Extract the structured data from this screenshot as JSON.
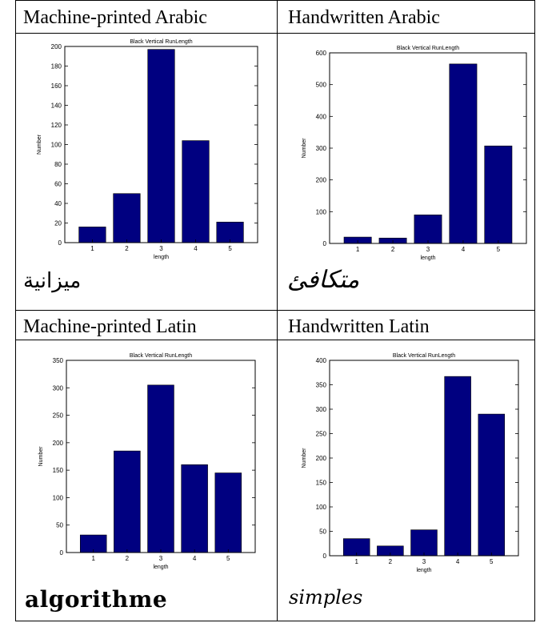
{
  "headers": {
    "top_left": "Machine-printed Arabic",
    "top_right": "Handwritten Arabic",
    "bottom_left": "Machine-printed Latin",
    "bottom_right": "Handwritten Latin"
  },
  "samples": {
    "top_left": "ميزانية",
    "top_right": "متكافئ",
    "bottom_left": "algorithme",
    "bottom_right": "simples"
  },
  "colors": {
    "bar": "#000080",
    "axis": "#000000",
    "background": "#ffffff"
  },
  "chart_data": [
    {
      "type": "bar",
      "title": "Black Vertical RunLength",
      "xlabel": "length",
      "ylabel": "Number",
      "categories": [
        "1",
        "2",
        "3",
        "4",
        "5"
      ],
      "values": [
        16,
        50,
        197,
        104,
        21
      ],
      "ylim": [
        0,
        200
      ],
      "yticks": [
        "0",
        "20",
        "40",
        "60",
        "80",
        "100",
        "120",
        "140",
        "160",
        "180",
        "200"
      ]
    },
    {
      "type": "bar",
      "title": "Black Vertical RunLength",
      "xlabel": "length",
      "ylabel": "Number",
      "categories": [
        "1",
        "2",
        "3",
        "4",
        "5"
      ],
      "values": [
        20,
        17,
        90,
        565,
        307
      ],
      "ylim": [
        0,
        600
      ],
      "yticks": [
        "0",
        "100",
        "200",
        "300",
        "400",
        "500",
        "600"
      ]
    },
    {
      "type": "bar",
      "title": "Black Vertical RunLength",
      "xlabel": "length",
      "ylabel": "Number",
      "categories": [
        "1",
        "2",
        "3",
        "4",
        "5"
      ],
      "values": [
        32,
        185,
        305,
        160,
        145
      ],
      "ylim": [
        0,
        350
      ],
      "yticks": [
        "0",
        "50",
        "100",
        "150",
        "200",
        "250",
        "300",
        "350"
      ]
    },
    {
      "type": "bar",
      "title": "Black Vertical RunLength",
      "xlabel": "length",
      "ylabel": "Number",
      "categories": [
        "1",
        "2",
        "3",
        "4",
        "5"
      ],
      "values": [
        35,
        20,
        53,
        367,
        290
      ],
      "ylim": [
        0,
        400
      ],
      "yticks": [
        "0",
        "50",
        "100",
        "150",
        "200",
        "250",
        "300",
        "350",
        "400"
      ]
    }
  ]
}
